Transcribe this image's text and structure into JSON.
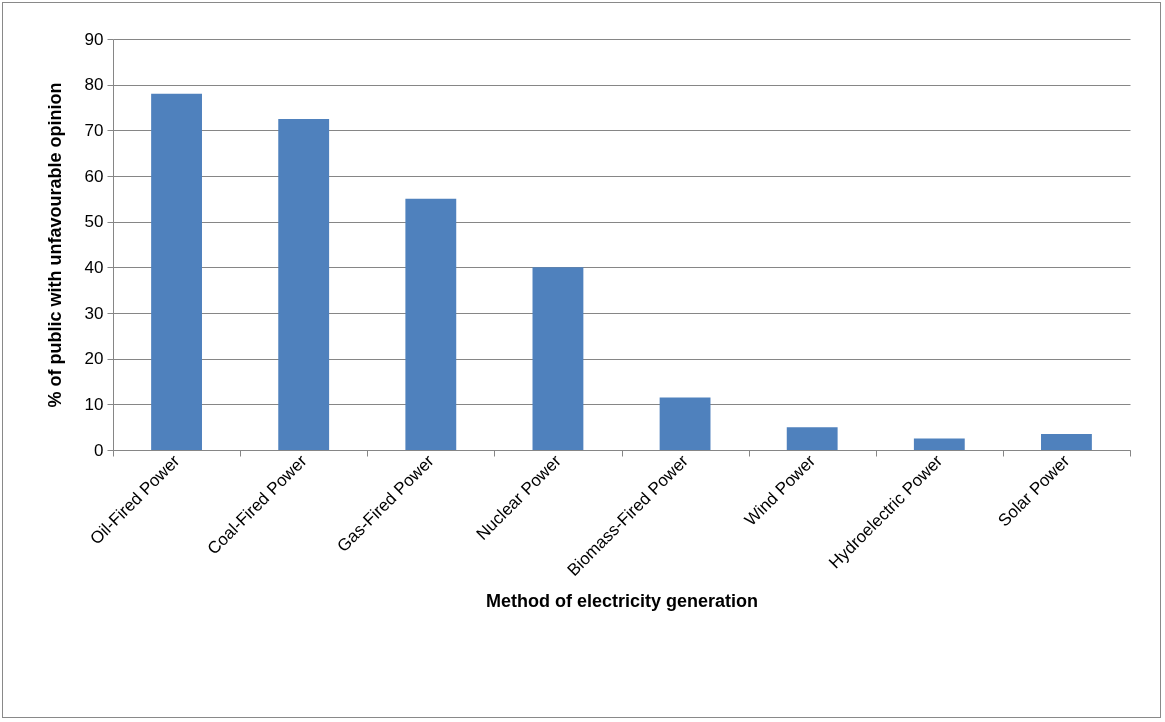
{
  "chart_data": {
    "type": "bar",
    "xlabel": "Method of electricity generation",
    "ylabel": "% of public with  unfavourable opinion",
    "categories": [
      "Oil-Fired Power",
      "Coal-Fired Power",
      "Gas-Fired Power",
      "Nuclear Power",
      "Biomass-Fired Power",
      "Wind Power",
      "Hydroelectric Power",
      "Solar Power"
    ],
    "values": [
      78,
      72.5,
      55,
      40,
      11.5,
      5,
      2.5,
      3.5
    ],
    "color": "#4f81bd",
    "ylim": [
      0,
      90
    ],
    "yticks": [
      0,
      10,
      20,
      30,
      40,
      50,
      60,
      70,
      80,
      90
    ],
    "grid": "y"
  }
}
